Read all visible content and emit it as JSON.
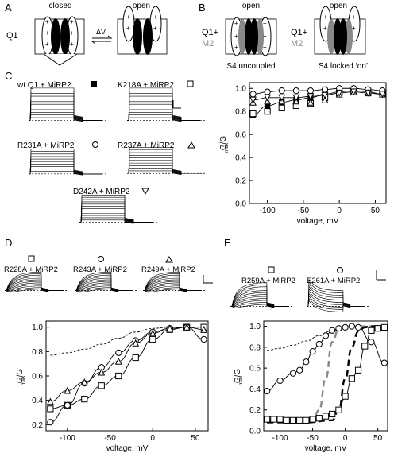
{
  "panels": {
    "A": {
      "letter": "A",
      "left_label": "Q1",
      "closed_label": "closed",
      "open_label": "open",
      "arrow_label": "ΔV"
    },
    "B": {
      "letter": "B",
      "left_label_line1": "Q1+",
      "left_label_line2": "M2",
      "right_label_line1": "Q1+",
      "right_label_line2": "M2",
      "open_label_1": "open",
      "open_label_2": "open",
      "caption_1": "S4 uncoupled",
      "caption_2": "S4 locked ‘on’"
    },
    "C": {
      "letter": "C",
      "trace_labels": [
        {
          "text": "wt Q1 + MiRP2",
          "symbol": "filled-square"
        },
        {
          "text": "K218A + MiRP2",
          "symbol": "open-square"
        },
        {
          "text": "R231A + MiRP2",
          "symbol": "open-circle"
        },
        {
          "text": "R237A + MiRP2",
          "symbol": "open-triangle-up"
        },
        {
          "text": "D242A + MiRP2",
          "symbol": "open-triangle-down"
        }
      ]
    },
    "D": {
      "letter": "D",
      "trace_labels": [
        {
          "text": "R228A + MiRP2",
          "symbol": "open-square"
        },
        {
          "text": "R243A + MiRP2",
          "symbol": "open-circle"
        },
        {
          "text": "R249A + MiRP2",
          "symbol": "open-triangle-up"
        }
      ]
    },
    "E": {
      "letter": "E",
      "trace_labels": [
        {
          "text": "R259A + MiRP2",
          "symbol": "open-square"
        },
        {
          "text": "E261A + MiRP2",
          "symbol": "open-circle"
        }
      ]
    }
  },
  "chart_data": [
    {
      "panel": "C",
      "type": "scatter",
      "xlabel": "voltage, mV",
      "ylabel": "G/G",
      "ylabel_sub": "max",
      "xlim": [
        -125,
        65
      ],
      "ylim": [
        0.0,
        1.05
      ],
      "xticks": [
        -100,
        -50,
        0,
        50
      ],
      "yticks": [
        0.0,
        0.2,
        0.4,
        0.6,
        0.8,
        1.0
      ],
      "ytick_labels": [
        "0.0",
        "0.2",
        "0.4",
        "0.6",
        "0.8",
        "1.0"
      ],
      "series": [
        {
          "symbol": "filled-square",
          "x": [
            -120,
            -100,
            -80,
            -60,
            -40,
            -20,
            0,
            20,
            40,
            60
          ],
          "y": [
            0.77,
            0.85,
            0.88,
            0.9,
            0.92,
            0.95,
            0.97,
            0.98,
            0.97,
            0.95
          ],
          "curve": true
        },
        {
          "symbol": "open-square",
          "x": [
            -120,
            -100,
            -80,
            -60,
            -40,
            -20,
            0,
            20,
            40,
            60
          ],
          "y": [
            0.78,
            0.8,
            0.83,
            0.85,
            0.87,
            0.92,
            0.96,
            0.97,
            0.97,
            0.96
          ]
        },
        {
          "symbol": "open-circle",
          "x": [
            -120,
            -100,
            -80,
            -60,
            -40,
            -20,
            0,
            20,
            40,
            60
          ],
          "y": [
            0.95,
            0.97,
            0.98,
            0.98,
            0.98,
            0.99,
            1.0,
            1.0,
            0.99,
            0.98
          ],
          "curve": true
        },
        {
          "symbol": "open-triangle-up",
          "x": [
            -120,
            -100,
            -80,
            -60,
            -40,
            -20,
            0,
            20,
            40,
            60
          ],
          "y": [
            0.88,
            0.89,
            0.89,
            0.89,
            0.88,
            0.9,
            0.95,
            0.97,
            0.96,
            0.95
          ]
        },
        {
          "symbol": "open-triangle-down",
          "x": [
            -120,
            -100,
            -80,
            -60,
            -40,
            -20,
            0,
            20,
            40,
            60
          ],
          "y": [
            0.9,
            0.92,
            0.92,
            0.92,
            0.93,
            0.94,
            0.96,
            0.97,
            0.96,
            0.95
          ],
          "curve": true
        }
      ]
    },
    {
      "panel": "D",
      "type": "scatter",
      "xlabel": "voltage, mV",
      "ylabel": "G/G",
      "ylabel_sub": "max",
      "xlim": [
        -125,
        65
      ],
      "ylim": [
        0.15,
        1.05
      ],
      "xticks": [
        -100,
        -50,
        0,
        50
      ],
      "yticks": [
        0.2,
        0.4,
        0.6,
        0.8,
        1.0
      ],
      "ytick_labels": [
        "0.2",
        "0.4",
        "0.6",
        "0.8",
        "1.0"
      ],
      "reference_curve": {
        "style": "dashed",
        "x": [
          -120,
          -100,
          -80,
          -60,
          -40,
          -20,
          0,
          20,
          40,
          60
        ],
        "y": [
          0.77,
          0.79,
          0.82,
          0.86,
          0.91,
          0.96,
          0.99,
          1.0,
          1.0,
          1.0
        ]
      },
      "series": [
        {
          "symbol": "open-square",
          "x": [
            -120,
            -100,
            -80,
            -60,
            -40,
            -20,
            0,
            20,
            40,
            60
          ],
          "y": [
            0.33,
            0.36,
            0.41,
            0.52,
            0.6,
            0.75,
            0.9,
            0.98,
            1.0,
            1.0
          ],
          "curve": true
        },
        {
          "symbol": "open-circle",
          "x": [
            -120,
            -100,
            -80,
            -60,
            -40,
            -20,
            0,
            20,
            40,
            60
          ],
          "y": [
            0.22,
            0.36,
            0.54,
            0.67,
            0.79,
            0.89,
            0.96,
            0.99,
            1.0,
            0.9
          ],
          "curve": true
        },
        {
          "symbol": "open-triangle-up",
          "x": [
            -120,
            -100,
            -80,
            -60,
            -40,
            -20,
            0,
            20,
            40,
            60
          ],
          "y": [
            0.39,
            0.48,
            0.55,
            0.63,
            0.72,
            0.87,
            0.95,
            0.99,
            1.0,
            0.98
          ],
          "curve": true
        }
      ]
    },
    {
      "panel": "E",
      "type": "scatter",
      "xlabel": "voltage, mV",
      "ylabel": "G/G",
      "ylabel_sub": "max",
      "xlim": [
        -125,
        65
      ],
      "ylim": [
        0.0,
        1.05
      ],
      "xticks": [
        -100,
        -50,
        0,
        50
      ],
      "yticks": [
        0.0,
        0.2,
        0.4,
        0.6,
        0.8,
        1.0
      ],
      "ytick_labels": [
        "0.0",
        "0.2",
        "0.4",
        "0.6",
        "0.8",
        "1.0"
      ],
      "reference_curve": {
        "style": "dashed",
        "x": [
          -120,
          -100,
          -80,
          -60,
          -40,
          -20,
          0,
          20,
          40,
          60
        ],
        "y": [
          0.77,
          0.79,
          0.82,
          0.86,
          0.91,
          0.96,
          0.99,
          1.0,
          1.0,
          1.0
        ]
      },
      "extra_curves": [
        {
          "style": "dashed-gray-thick",
          "x": [
            -120,
            -80,
            -50,
            -40,
            -30,
            -20,
            -10,
            0,
            10,
            60
          ],
          "y": [
            0.08,
            0.08,
            0.1,
            0.2,
            0.5,
            0.85,
            0.97,
            1.0,
            1.0,
            1.0
          ]
        },
        {
          "style": "dashed-black-thick",
          "x": [
            -120,
            -60,
            -20,
            -10,
            0,
            10,
            20,
            30,
            40,
            60
          ],
          "y": [
            0.08,
            0.08,
            0.1,
            0.2,
            0.5,
            0.8,
            0.95,
            0.99,
            1.0,
            1.0
          ]
        }
      ],
      "series": [
        {
          "symbol": "open-square",
          "x": [
            -120,
            -110,
            -100,
            -90,
            -80,
            -70,
            -60,
            -50,
            -40,
            -30,
            -20,
            -10,
            0,
            10,
            20,
            30,
            40,
            50,
            60
          ],
          "y": [
            0.11,
            0.11,
            0.11,
            0.1,
            0.1,
            0.1,
            0.1,
            0.11,
            0.12,
            0.14,
            0.16,
            0.2,
            0.33,
            0.5,
            0.58,
            0.81,
            0.96,
            0.98,
            0.99
          ],
          "curve": true
        },
        {
          "symbol": "open-circle",
          "x": [
            -120,
            -100,
            -80,
            -70,
            -60,
            -50,
            -40,
            -30,
            -20,
            -10,
            0,
            10,
            20,
            40,
            60
          ],
          "y": [
            0.38,
            0.48,
            0.55,
            0.58,
            0.66,
            0.76,
            0.83,
            0.91,
            0.96,
            0.98,
            0.99,
            1.0,
            0.99,
            0.85,
            0.65
          ],
          "curve": true
        }
      ]
    }
  ]
}
